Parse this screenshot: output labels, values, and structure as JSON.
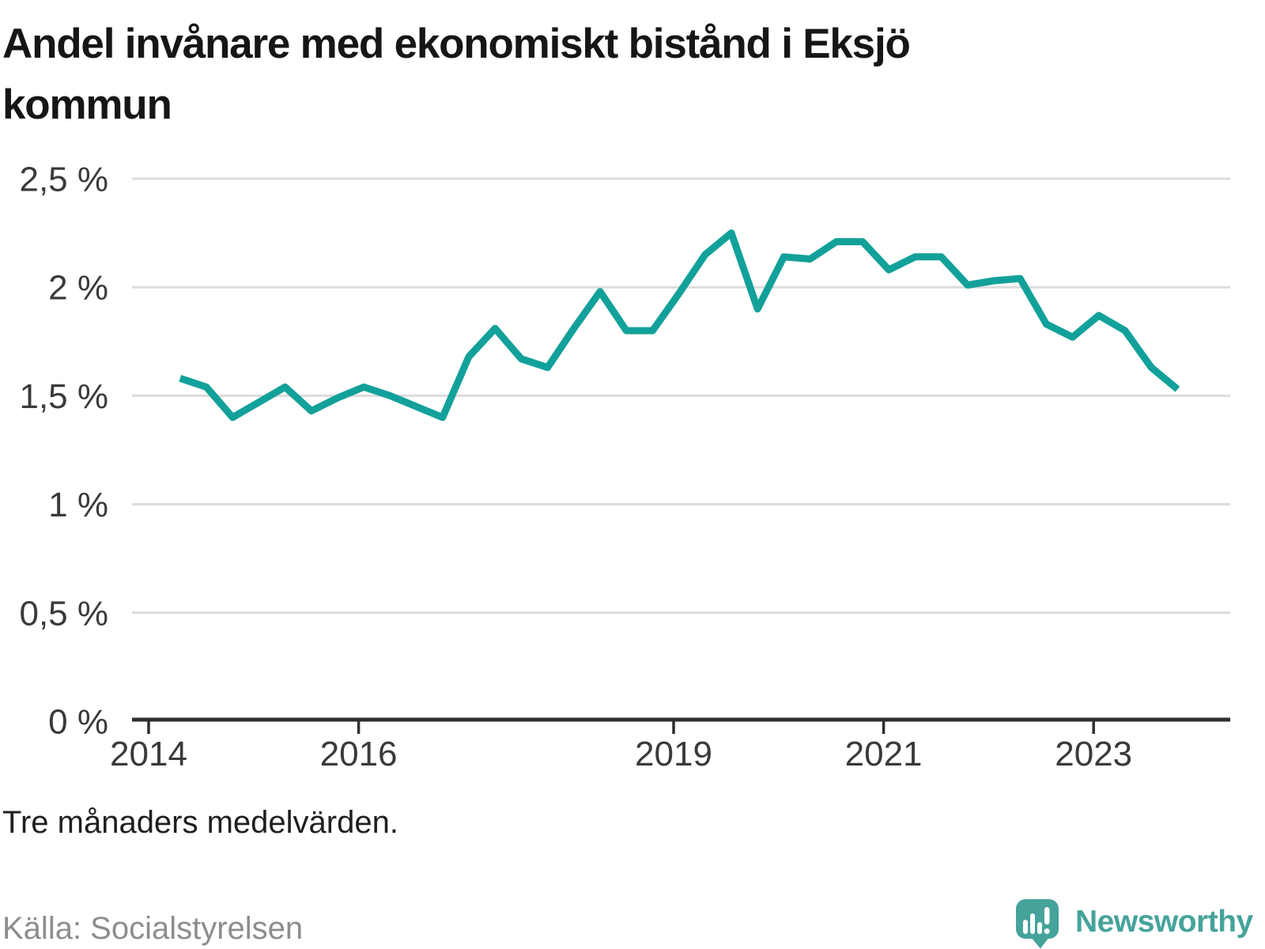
{
  "title": {
    "line1": "Andel invånare med ekonomiskt bistånd i Eksjö",
    "line2": "kommun"
  },
  "footnote": "Tre månaders medelvärden.",
  "source": "Källa: Socialstyrelsen",
  "logo": {
    "text": "Newsworthy",
    "icon": "speech-bubble-bar-chart"
  },
  "colors": {
    "line": "#12a19a",
    "grid": "#dcdcdc",
    "axis": "#2f2f2f",
    "tick_text": "#3a3a3a",
    "title_text": "#161616",
    "footnote_text": "#1f1f1f",
    "source_text": "#8d8d8d",
    "logo": "#45a39b",
    "background": "#ffffff"
  },
  "chart_data": {
    "type": "line",
    "title": "Andel invånare med ekonomiskt bistånd i Eksjö kommun",
    "xlabel": "",
    "ylabel": "",
    "unit": "%",
    "ylim": [
      0,
      2.5
    ],
    "grid": true,
    "legend": "none",
    "y_ticks": [
      "0 %",
      "0,5 %",
      "1 %",
      "1,5 %",
      "2 %",
      "2,5 %"
    ],
    "y_tick_values": [
      0,
      0.5,
      1,
      1.5,
      2,
      2.5
    ],
    "x_ticks": [
      "2014",
      "2016",
      "2019",
      "2021",
      "2023"
    ],
    "x": [
      "2014-Q2",
      "2014-Q3",
      "2014-Q4",
      "2015-Q1",
      "2015-Q2",
      "2015-Q3",
      "2015-Q4",
      "2016-Q1",
      "2016-Q2",
      "2016-Q3",
      "2016-Q4",
      "2017-Q1",
      "2017-Q2",
      "2017-Q3",
      "2017-Q4",
      "2018-Q1",
      "2018-Q2",
      "2018-Q3",
      "2018-Q4",
      "2019-Q1",
      "2019-Q2",
      "2019-Q3",
      "2019-Q4",
      "2020-Q1",
      "2020-Q2",
      "2020-Q3",
      "2020-Q4",
      "2021-Q1",
      "2021-Q2",
      "2021-Q3",
      "2021-Q4",
      "2022-Q1",
      "2022-Q2",
      "2022-Q3",
      "2022-Q4",
      "2023-Q1",
      "2023-Q2",
      "2023-Q3",
      "2023-Q4"
    ],
    "values": [
      1.58,
      1.54,
      1.4,
      1.47,
      1.54,
      1.43,
      1.49,
      1.54,
      1.5,
      1.45,
      1.4,
      1.68,
      1.81,
      1.67,
      1.63,
      1.81,
      1.98,
      1.8,
      1.8,
      1.97,
      2.15,
      2.25,
      1.9,
      2.14,
      2.13,
      2.21,
      2.21,
      2.08,
      2.14,
      2.14,
      2.01,
      2.03,
      2.04,
      1.83,
      1.77,
      1.87,
      1.8,
      1.63,
      1.53
    ]
  }
}
